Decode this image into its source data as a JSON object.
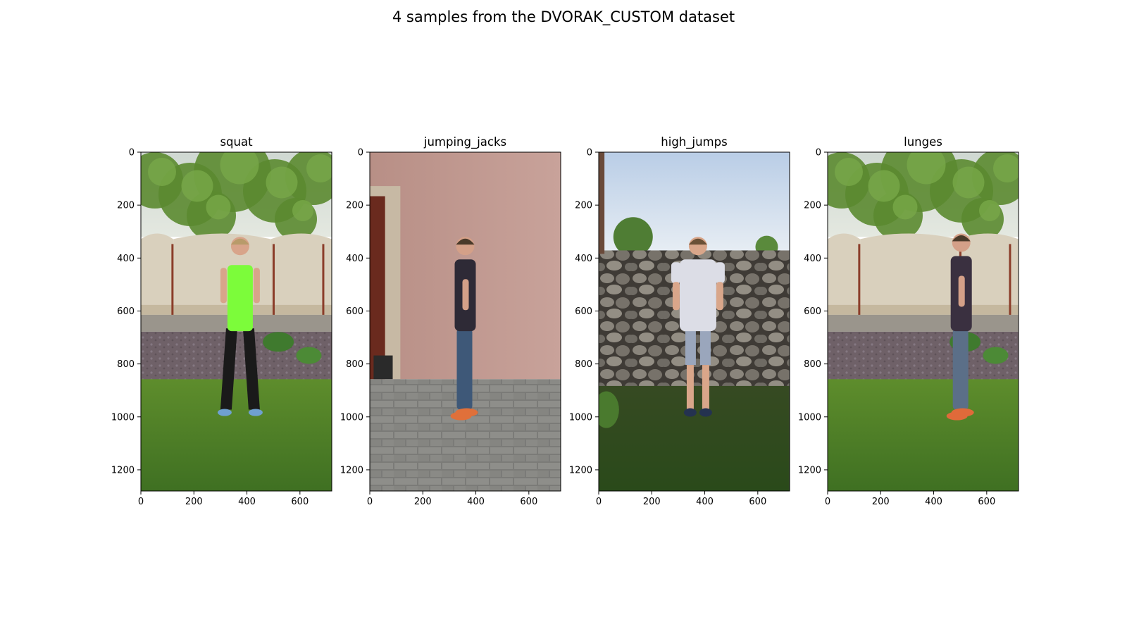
{
  "figure": {
    "title": "4 samples from the DVORAK_CUSTOM dataset"
  },
  "panels": [
    {
      "title": "squat",
      "image_description": "Woman in neon green tank top and black leggings standing on grass in front of a concrete fence with trees behind.",
      "scene": "fence-garden",
      "person": {
        "top_color": "#7CFC3A",
        "bottom_color": "#1a1a1a",
        "skin": "#d8a48a",
        "hair": "#b89b6a",
        "shoes": "#6fa0d0"
      },
      "x_ticks": [
        "0",
        "200",
        "400",
        "600"
      ],
      "y_ticks": [
        "0",
        "200",
        "400",
        "600",
        "800",
        "1000",
        "1200"
      ]
    },
    {
      "title": "jumping_jacks",
      "image_description": "Man in dark t-shirt and blue jeans standing in profile in front of a pink stucco wall on paving stones.",
      "scene": "pink-wall",
      "person": {
        "top_color": "#2e2a36",
        "bottom_color": "#3e5878",
        "skin": "#d4a088",
        "hair": "#4a3a2a",
        "shoes": "#e0703a"
      },
      "x_ticks": [
        "0",
        "200",
        "400",
        "600"
      ],
      "y_ticks": [
        "0",
        "200",
        "400",
        "600",
        "800",
        "1000",
        "1200"
      ]
    },
    {
      "title": "high_jumps",
      "image_description": "Man in light grey t-shirt and shorts standing on grass in front of a rough stone wall under a pale sky.",
      "scene": "stone-wall",
      "person": {
        "top_color": "#dcdde6",
        "bottom_color": "#9aa6bc",
        "skin": "#d9a68a",
        "hair": "#6a5036",
        "shoes": "#243250"
      },
      "x_ticks": [
        "0",
        "200",
        "400",
        "600"
      ],
      "y_ticks": [
        "0",
        "200",
        "400",
        "600",
        "800",
        "1000",
        "1200"
      ]
    },
    {
      "title": "lunges",
      "image_description": "Man in dark t-shirt and grey joggers standing in profile on grass in front of a concrete fence with trees.",
      "scene": "fence-garden",
      "person": {
        "top_color": "#3a3040",
        "bottom_color": "#5b6f88",
        "skin": "#d4a088",
        "hair": "#4a3a2a",
        "shoes": "#e06a3a"
      },
      "x_ticks": [
        "0",
        "200",
        "400",
        "600"
      ],
      "y_ticks": [
        "0",
        "200",
        "400",
        "600",
        "800",
        "1000",
        "1200"
      ]
    }
  ]
}
